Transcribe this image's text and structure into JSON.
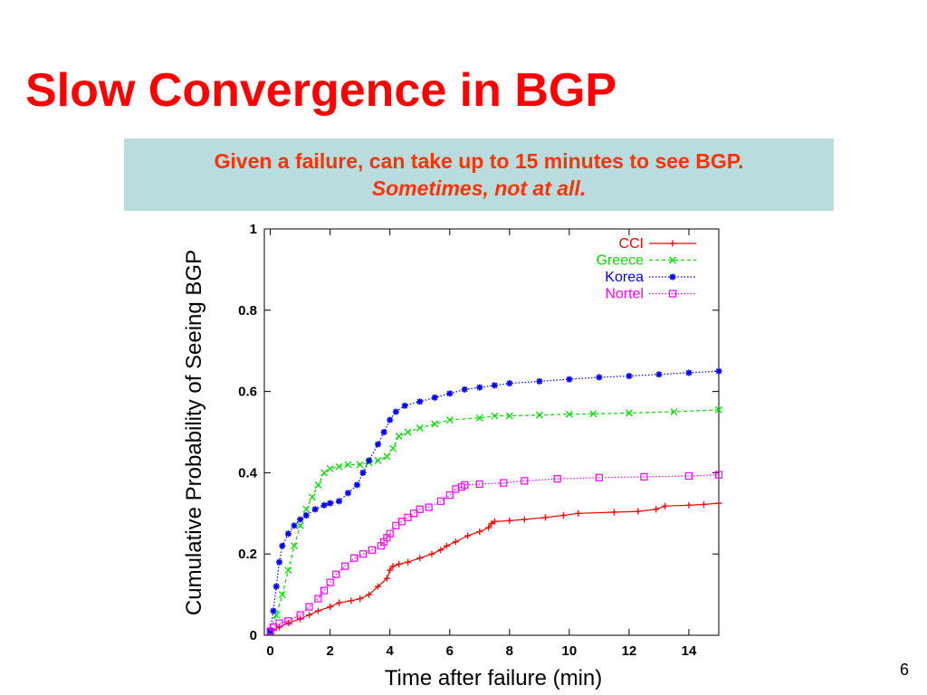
{
  "slide": {
    "title": "Slow Convergence in BGP",
    "callout_line1": "Given a failure, can take up to 15 minutes to see BGP.",
    "callout_line2": "Sometimes, not at all.",
    "page_number": "6"
  },
  "colors": {
    "title": "#ff0000",
    "callout_bg": "#b9dcde",
    "callout_text": "#ff3300"
  },
  "chart_data": {
    "type": "line",
    "title": "",
    "xlabel": "Time after failure (min)",
    "ylabel": "Cumulative Probability of Seeing BGP",
    "xlim": [
      -0.2,
      15
    ],
    "ylim": [
      0,
      1
    ],
    "xticks": [
      0,
      2,
      4,
      6,
      8,
      10,
      12,
      14
    ],
    "yticks": [
      0,
      0.2,
      0.4,
      0.6,
      0.8,
      1
    ],
    "xtick_labels": [
      "0",
      "2",
      "4",
      "6",
      "8",
      "10",
      "12",
      "14"
    ],
    "ytick_labels": [
      "0",
      "0.2",
      "0.4",
      "0.6",
      "0.8",
      "1"
    ],
    "grid": false,
    "legend_position": "top-right",
    "series": [
      {
        "name": "CCI",
        "color": "#ff0000",
        "style": "solid",
        "marker": "plus",
        "x": [
          0,
          0.3,
          0.6,
          1.0,
          1.3,
          1.6,
          2.0,
          2.3,
          2.7,
          3.0,
          3.3,
          3.6,
          3.9,
          4.0,
          4.1,
          4.3,
          4.6,
          5.0,
          5.4,
          5.7,
          5.9,
          6.2,
          6.6,
          7.0,
          7.3,
          7.4,
          7.5,
          8.0,
          8.5,
          9.2,
          9.8,
          10.3,
          11.5,
          12.3,
          12.9,
          13.2,
          14.0,
          14.5,
          15.0
        ],
        "y": [
          0.01,
          0.02,
          0.03,
          0.04,
          0.05,
          0.06,
          0.07,
          0.08,
          0.085,
          0.09,
          0.1,
          0.12,
          0.14,
          0.16,
          0.17,
          0.175,
          0.18,
          0.19,
          0.2,
          0.21,
          0.22,
          0.23,
          0.245,
          0.255,
          0.265,
          0.275,
          0.28,
          0.282,
          0.285,
          0.29,
          0.295,
          0.3,
          0.303,
          0.305,
          0.31,
          0.318,
          0.32,
          0.322,
          0.325
        ]
      },
      {
        "name": "Greece",
        "color": "#00dd00",
        "style": "dashed",
        "marker": "x",
        "x": [
          0,
          0.2,
          0.4,
          0.6,
          0.8,
          1.0,
          1.2,
          1.4,
          1.6,
          1.8,
          2.0,
          2.3,
          2.6,
          3.0,
          3.3,
          3.6,
          3.9,
          4.1,
          4.3,
          4.6,
          5.0,
          5.5,
          6.0,
          7.0,
          7.5,
          8.0,
          9.0,
          10.0,
          10.8,
          12.0,
          13.5,
          15.0
        ],
        "y": [
          0.01,
          0.05,
          0.1,
          0.16,
          0.22,
          0.27,
          0.31,
          0.34,
          0.37,
          0.4,
          0.41,
          0.415,
          0.42,
          0.42,
          0.425,
          0.43,
          0.44,
          0.46,
          0.49,
          0.5,
          0.51,
          0.52,
          0.53,
          0.535,
          0.54,
          0.54,
          0.542,
          0.544,
          0.545,
          0.547,
          0.55,
          0.555
        ]
      },
      {
        "name": "Korea",
        "color": "#0000ff",
        "style": "dotted",
        "marker": "star",
        "x": [
          0,
          0.1,
          0.2,
          0.3,
          0.4,
          0.6,
          0.8,
          1.0,
          1.2,
          1.5,
          1.8,
          2.0,
          2.3,
          2.6,
          2.9,
          3.1,
          3.3,
          3.6,
          3.8,
          4.0,
          4.2,
          4.5,
          5.0,
          5.5,
          6.0,
          6.5,
          7.0,
          7.5,
          8.0,
          9.0,
          10.0,
          11.0,
          12.0,
          13.0,
          14.0,
          15.0
        ],
        "y": [
          0.01,
          0.06,
          0.12,
          0.18,
          0.22,
          0.25,
          0.27,
          0.285,
          0.295,
          0.31,
          0.32,
          0.325,
          0.33,
          0.35,
          0.37,
          0.4,
          0.43,
          0.47,
          0.5,
          0.53,
          0.55,
          0.565,
          0.575,
          0.585,
          0.595,
          0.605,
          0.61,
          0.615,
          0.62,
          0.625,
          0.63,
          0.635,
          0.638,
          0.642,
          0.646,
          0.65
        ]
      },
      {
        "name": "Nortel",
        "color": "#ff00ff",
        "style": "dotted",
        "marker": "square",
        "x": [
          0,
          0.1,
          0.3,
          0.6,
          1.0,
          1.3,
          1.6,
          1.8,
          2.0,
          2.2,
          2.5,
          2.8,
          3.1,
          3.4,
          3.7,
          3.8,
          3.9,
          4.0,
          4.2,
          4.4,
          4.6,
          4.8,
          5.0,
          5.3,
          5.7,
          6.0,
          6.2,
          6.4,
          6.5,
          7.0,
          7.8,
          8.5,
          9.6,
          11.0,
          12.5,
          14.0,
          15.0
        ],
        "y": [
          0.01,
          0.02,
          0.03,
          0.035,
          0.05,
          0.07,
          0.09,
          0.11,
          0.13,
          0.15,
          0.17,
          0.19,
          0.2,
          0.21,
          0.22,
          0.23,
          0.24,
          0.25,
          0.27,
          0.28,
          0.29,
          0.3,
          0.31,
          0.315,
          0.33,
          0.345,
          0.36,
          0.365,
          0.37,
          0.372,
          0.375,
          0.38,
          0.385,
          0.388,
          0.39,
          0.392,
          0.395
        ]
      }
    ]
  }
}
